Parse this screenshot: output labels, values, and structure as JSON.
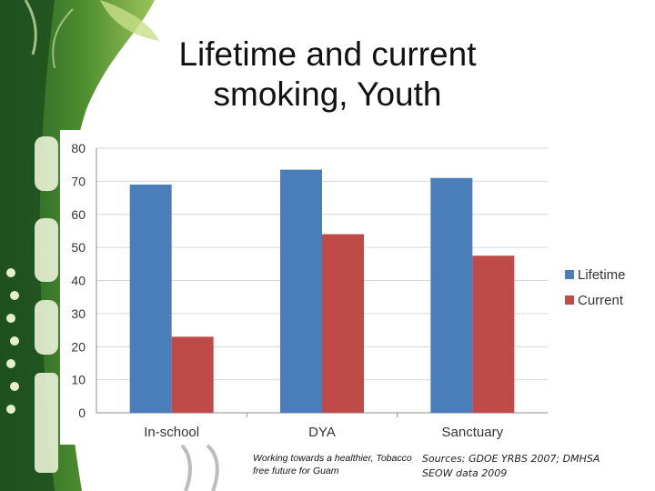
{
  "slide": {
    "title": "Lifetime and current smoking, Youth",
    "footer_left": "Working towards a healthier, Tobacco free future for Guam",
    "footer_right": "Sources:  GDOE YRBS 2007; DMHSA SEOW data 2009"
  },
  "colors": {
    "lifetime": "#4A7EBB",
    "current": "#BE4B48",
    "background_green": "#3d7a2e"
  },
  "chart_data": {
    "type": "bar",
    "categories": [
      "In-school",
      "DYA",
      "Sanctuary"
    ],
    "series": [
      {
        "name": "Lifetime",
        "values": [
          69,
          73.5,
          71
        ]
      },
      {
        "name": "Current",
        "values": [
          23,
          54,
          47.5
        ]
      }
    ],
    "title": "",
    "xlabel": "",
    "ylabel": "",
    "ylim": [
      0,
      80
    ],
    "yticks": [
      0,
      10,
      20,
      30,
      40,
      50,
      60,
      70,
      80
    ],
    "grid": true,
    "legend_position": "right"
  }
}
